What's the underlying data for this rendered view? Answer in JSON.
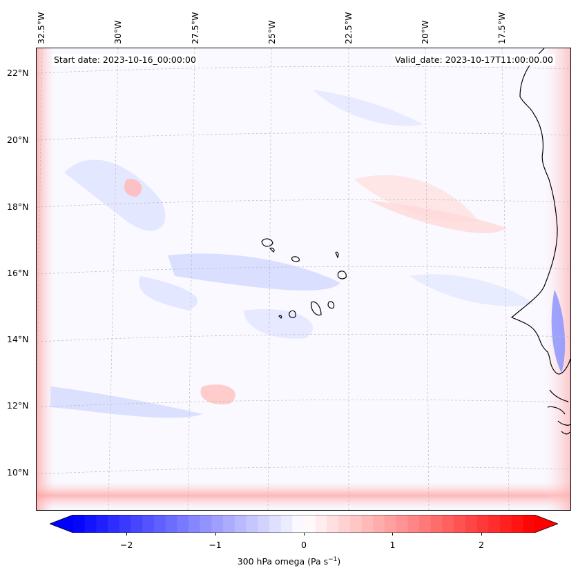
{
  "map": {
    "start_label": "Start date: 2023-10-16_00:00:00",
    "valid_label": "Valid_date: 2023-10-17T11:00:00.00",
    "lon_ticks": [
      "32.5°W",
      "30°W",
      "27.5°W",
      "25°W",
      "22.5°W",
      "20°W",
      "17.5°W"
    ],
    "lat_ticks": [
      "22°N",
      "20°N",
      "18°N",
      "16°N",
      "14°N",
      "12°N",
      "10°N"
    ],
    "field_name": "300 hPa omega",
    "colors": {
      "negative": "#0000ff",
      "neutral": "#ffffff",
      "positive": "#ff0000",
      "coast": "#000000",
      "grid": "#bbbbbb"
    }
  },
  "colorbar": {
    "ticks": [
      "−2",
      "−1",
      "0",
      "1",
      "2"
    ],
    "tick_values": [
      -2,
      -1,
      0,
      1,
      2
    ],
    "min": -2.6,
    "max": 2.6,
    "label_prefix": "300 hPa omega (Pa s",
    "label_sup": "−1",
    "label_suffix": ")"
  }
}
